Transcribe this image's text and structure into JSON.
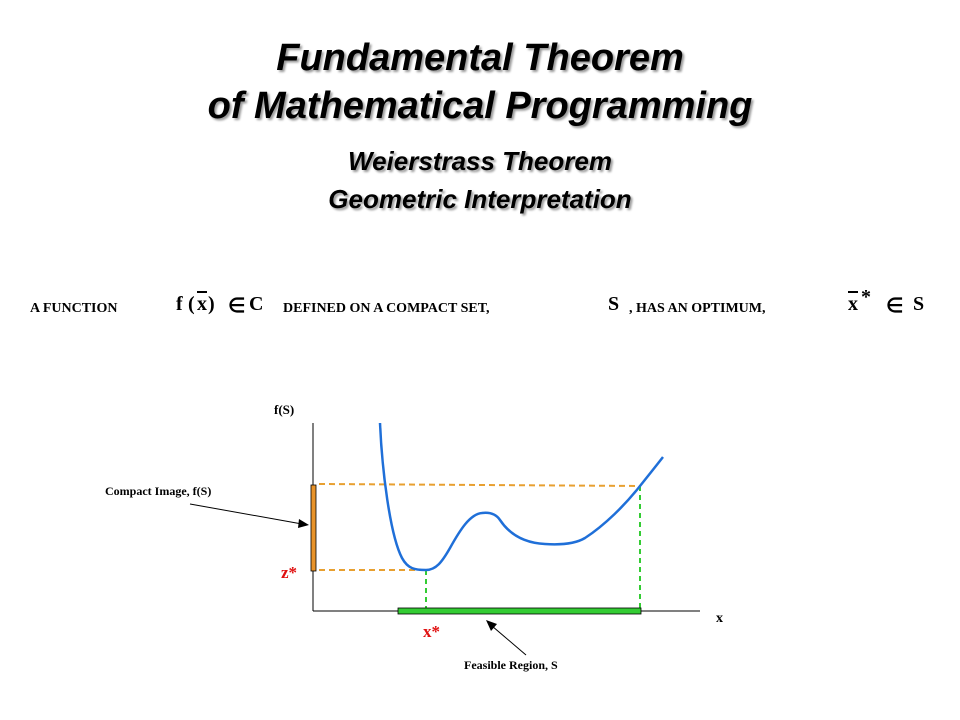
{
  "title": {
    "line1": "Fundamental Theorem",
    "line2": "of Mathematical Programming",
    "line3": "Weierstrass Theorem",
    "line4": "Geometric Interpretation"
  },
  "statement": {
    "part1": "A FUNCTION",
    "f": "f",
    "paren_open": "(",
    "x": "x",
    "paren_close": ")",
    "elem1": "∈",
    "C": "C",
    "part2": "DEFINED ON A COMPACT SET,",
    "S1": "S",
    "part3": ", HAS AN OPTIMUM,",
    "xstar_x": "x",
    "xstar_star": "*",
    "elem2": "∈",
    "S2": "S"
  },
  "diagram": {
    "y_axis_label": "f(S)",
    "x_axis_label": "x",
    "compact_image_label": "Compact Image,  f(S)",
    "z_star": "z*",
    "x_star": "x*",
    "feasible_region_label": "Feasible Region,  S"
  },
  "colors": {
    "curve": "#1f6fd8",
    "compact_bar": "#e8932a",
    "orange_dashed": "#e8a030",
    "feasible_bar": "#33cc33",
    "green_dashed": "#33cc33",
    "star_labels": "#e01010"
  }
}
